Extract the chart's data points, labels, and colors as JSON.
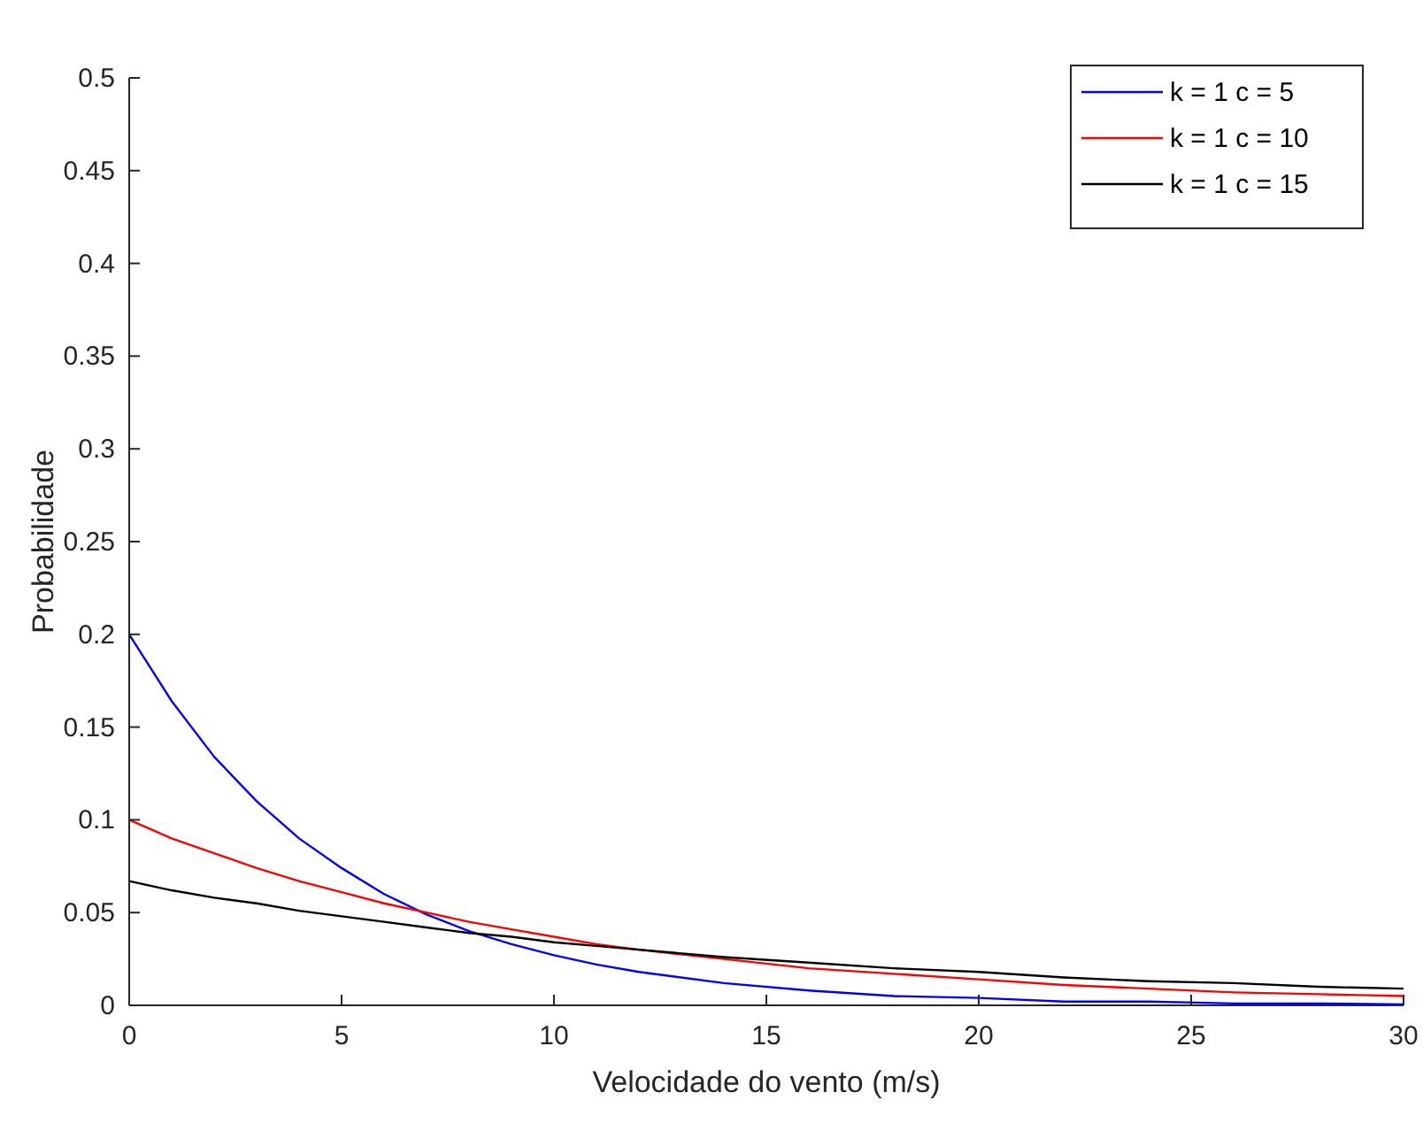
{
  "chart_data": {
    "type": "line",
    "xlabel": "Velocidade do vento (m/s)",
    "ylabel": "Probabilidade",
    "x": [
      0,
      1,
      2,
      3,
      4,
      5,
      6,
      7,
      8,
      9,
      10,
      11,
      12,
      14,
      16,
      18,
      20,
      22,
      24,
      26,
      28,
      30
    ],
    "series": [
      {
        "name": "k = 1 c = 5",
        "color": "#0000ff",
        "values": [
          0.2,
          0.164,
          0.134,
          0.11,
          0.09,
          0.074,
          0.06,
          0.049,
          0.04,
          0.033,
          0.027,
          0.022,
          0.018,
          0.012,
          0.008,
          0.005,
          0.004,
          0.002,
          0.002,
          0.001,
          0.001,
          0.0005
        ]
      },
      {
        "name": "k = 1 c = 10",
        "color": "#ff0000",
        "values": [
          0.1,
          0.09,
          0.082,
          0.074,
          0.067,
          0.061,
          0.055,
          0.05,
          0.045,
          0.041,
          0.037,
          0.033,
          0.03,
          0.025,
          0.02,
          0.017,
          0.014,
          0.011,
          0.009,
          0.007,
          0.006,
          0.005
        ]
      },
      {
        "name": "k = 1 c = 15",
        "color": "#000000",
        "values": [
          0.067,
          0.062,
          0.058,
          0.055,
          0.051,
          0.048,
          0.045,
          0.042,
          0.039,
          0.037,
          0.034,
          0.032,
          0.03,
          0.026,
          0.023,
          0.02,
          0.018,
          0.015,
          0.013,
          0.012,
          0.01,
          0.009
        ]
      }
    ],
    "xlim": [
      0,
      30
    ],
    "xticks": [
      0,
      5,
      10,
      15,
      20,
      25,
      30
    ],
    "ylim": [
      0,
      0.5
    ],
    "yticks": [
      0,
      0.05,
      0.1,
      0.15,
      0.2,
      0.25,
      0.3,
      0.35,
      0.4,
      0.45,
      0.5
    ],
    "grid": false,
    "legend": "top right",
    "line_style": "solid",
    "marker": "none"
  }
}
